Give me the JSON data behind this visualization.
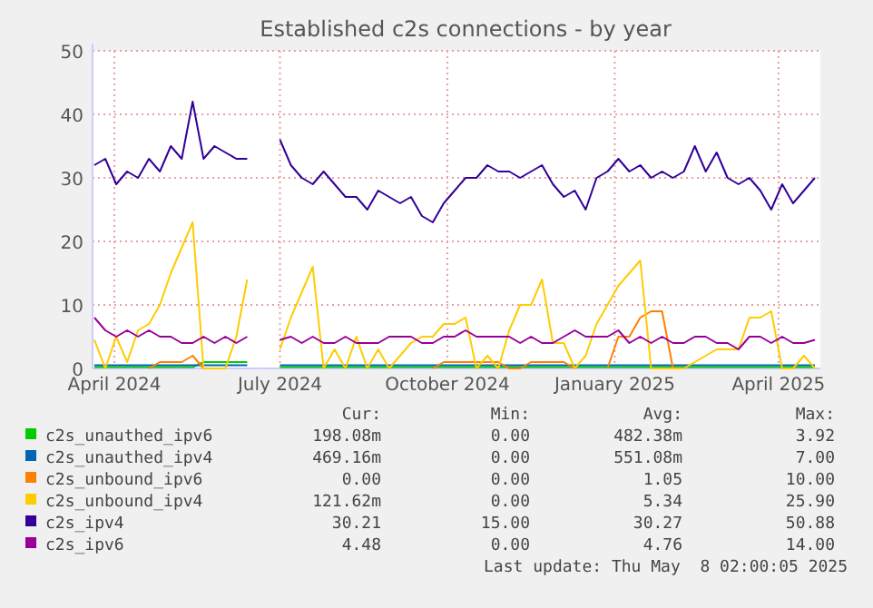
{
  "chart_data": {
    "type": "line",
    "title": "Established c2s connections - by year",
    "x": [
      "2024-03-21",
      "2024-03-27",
      "2024-04-02",
      "2024-04-08",
      "2024-04-14",
      "2024-04-20",
      "2024-04-26",
      "2024-05-02",
      "2024-05-08",
      "2024-05-14",
      "2024-05-20",
      "2024-05-26",
      "2024-06-01",
      "2024-06-07",
      "2024-06-13",
      "2024-06-19",
      "2024-06-25",
      "2024-07-01",
      "2024-07-07",
      "2024-07-13",
      "2024-07-19",
      "2024-07-25",
      "2024-07-31",
      "2024-08-06",
      "2024-08-12",
      "2024-08-18",
      "2024-08-24",
      "2024-08-30",
      "2024-09-05",
      "2024-09-11",
      "2024-09-17",
      "2024-09-23",
      "2024-09-29",
      "2024-10-05",
      "2024-10-11",
      "2024-10-17",
      "2024-10-23",
      "2024-10-29",
      "2024-11-04",
      "2024-11-10",
      "2024-11-16",
      "2024-11-22",
      "2024-11-28",
      "2024-12-04",
      "2024-12-10",
      "2024-12-16",
      "2024-12-22",
      "2024-12-28",
      "2025-01-03",
      "2025-01-09",
      "2025-01-15",
      "2025-01-21",
      "2025-01-27",
      "2025-02-02",
      "2025-02-08",
      "2025-02-14",
      "2025-02-20",
      "2025-02-26",
      "2025-03-04",
      "2025-03-10",
      "2025-03-16",
      "2025-03-22",
      "2025-03-28",
      "2025-04-03",
      "2025-04-09",
      "2025-04-15",
      "2025-04-21"
    ],
    "series": [
      {
        "name": "c2s_unauthed_ipv6",
        "color": "#00cc00",
        "values": [
          0.2,
          0.2,
          0.2,
          0.2,
          0.2,
          0.2,
          0.2,
          0.2,
          0.2,
          0.2,
          1,
          1,
          1,
          1,
          1,
          null,
          null,
          0.2,
          0.2,
          0.2,
          0.2,
          0.2,
          0.2,
          0.2,
          0.2,
          0.2,
          0.2,
          0.2,
          0.2,
          0.2,
          0.2,
          0.2,
          0.2,
          0.2,
          0.2,
          0.2,
          0.2,
          0.2,
          0.2,
          0.2,
          0.2,
          0.2,
          0.2,
          0.2,
          0.2,
          0.2,
          0.2,
          0.2,
          0.2,
          0.2,
          0.2,
          0.2,
          0.2,
          0.2,
          0.2,
          0.2,
          0.2,
          0.2,
          0.2,
          0.2,
          0.2,
          0.2,
          0.2,
          0.2,
          0.2,
          0.2,
          0.2
        ]
      },
      {
        "name": "c2s_unauthed_ipv4",
        "color": "#0066b3",
        "values": [
          0.5,
          0.5,
          0.5,
          0.5,
          0.5,
          0.5,
          0.5,
          0.5,
          0.5,
          0.5,
          0.5,
          0.5,
          0.5,
          0.5,
          0.5,
          null,
          null,
          0.5,
          0.5,
          0.5,
          0.5,
          0.5,
          0.5,
          0.5,
          0.5,
          0.5,
          0.5,
          0.5,
          0.5,
          0.5,
          0.5,
          0.5,
          0.5,
          0.5,
          0.5,
          0.5,
          0.5,
          0.5,
          0.5,
          0.5,
          0.5,
          0.5,
          0.5,
          0.5,
          0.5,
          0.5,
          0.5,
          0.5,
          0.5,
          0.5,
          0.5,
          0.5,
          0.5,
          0.5,
          0.5,
          0.5,
          0.5,
          0.5,
          0.5,
          0.5,
          0.5,
          0.5,
          0.5,
          0.5,
          0.5,
          0.5,
          0.5
        ]
      },
      {
        "name": "c2s_unbound_ipv6",
        "color": "#ff8000",
        "values": [
          null,
          null,
          null,
          null,
          null,
          0,
          1,
          1,
          1,
          2,
          0,
          null,
          null,
          null,
          null,
          null,
          null,
          null,
          null,
          null,
          null,
          null,
          null,
          null,
          null,
          null,
          null,
          null,
          null,
          null,
          null,
          0,
          1,
          1,
          1,
          1,
          1,
          1,
          0,
          0,
          1,
          1,
          1,
          1,
          0,
          null,
          null,
          0,
          5,
          5,
          8,
          9,
          9,
          0,
          null,
          null,
          null,
          null,
          null,
          null,
          null,
          null,
          null,
          null,
          null,
          null,
          null
        ]
      },
      {
        "name": "c2s_unbound_ipv4",
        "color": "#ffcc00",
        "values": [
          4.5,
          0,
          5,
          1,
          6,
          7,
          10,
          15,
          19,
          23,
          0,
          0,
          0,
          5,
          14,
          null,
          null,
          3,
          8,
          12,
          16,
          0,
          3,
          0,
          5,
          0,
          3,
          0,
          2,
          4,
          5,
          5,
          7,
          7,
          8,
          0,
          2,
          0,
          6,
          10,
          10,
          14,
          4,
          4,
          0,
          2,
          7,
          10,
          13,
          15,
          17,
          0,
          0,
          0,
          0,
          1,
          2,
          3,
          3,
          3,
          8,
          8,
          9,
          0,
          0,
          2,
          0
        ]
      },
      {
        "name": "c2s_ipv4",
        "color": "#330099",
        "values": [
          32,
          33,
          29,
          31,
          30,
          33,
          31,
          35,
          33,
          42,
          33,
          35,
          34,
          33,
          33,
          null,
          null,
          36,
          32,
          30,
          29,
          31,
          29,
          27,
          27,
          25,
          28,
          27,
          26,
          27,
          24,
          23,
          26,
          28,
          30,
          30,
          32,
          31,
          31,
          30,
          31,
          32,
          29,
          27,
          28,
          25,
          30,
          31,
          33,
          31,
          32,
          30,
          31,
          30,
          31,
          35,
          31,
          34,
          30,
          29,
          30,
          28,
          25,
          29,
          26,
          28,
          30
        ]
      },
      {
        "name": "c2s_ipv6",
        "color": "#990099",
        "values": [
          8,
          6,
          5,
          6,
          5,
          6,
          5,
          5,
          4,
          4,
          5,
          4,
          5,
          4,
          5,
          null,
          null,
          4.5,
          5,
          4,
          5,
          4,
          4,
          5,
          4,
          4,
          4,
          5,
          5,
          5,
          4,
          4,
          5,
          5,
          6,
          5,
          5,
          5,
          5,
          4,
          5,
          4,
          4,
          5,
          6,
          5,
          5,
          5,
          6,
          4,
          5,
          4,
          5,
          4,
          4,
          5,
          5,
          4,
          4,
          3,
          5,
          5,
          4,
          5,
          4,
          4,
          4.5
        ]
      }
    ],
    "xlim": [
      "2024-03-20",
      "2025-04-24"
    ],
    "xticks": [
      {
        "value": "2024-04-01",
        "label": "April 2024"
      },
      {
        "value": "2024-07-01",
        "label": "July 2024"
      },
      {
        "value": "2024-10-01",
        "label": "October 2024"
      },
      {
        "value": "2025-01-01",
        "label": "January 2025"
      },
      {
        "value": "2025-04-01",
        "label": "April 2025"
      }
    ],
    "ylim": [
      0,
      50
    ],
    "yticks": [
      0,
      10,
      20,
      30,
      40,
      50
    ],
    "grid": true,
    "legend": "bottom",
    "annotations": [
      "Cur:",
      "Min:",
      "Avg:",
      "Max:",
      "198.08m",
      "0.00",
      "482.38m",
      "3.92",
      "469.16m",
      "0.00",
      "551.08m",
      "7.00",
      "0.00",
      "0.00",
      "1.05",
      "10.00",
      "121.62m",
      "0.00",
      "5.34",
      "25.90",
      "30.21",
      "15.00",
      "30.27",
      "50.88",
      "4.48",
      "0.00",
      "4.76",
      "14.00",
      "Last update: Thu May  8 02:00:05 2025"
    ]
  }
}
